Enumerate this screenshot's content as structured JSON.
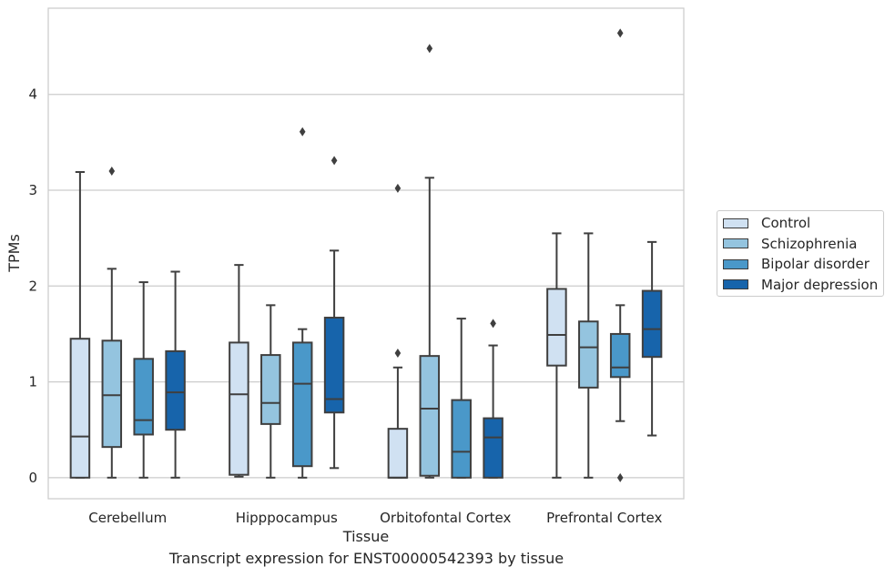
{
  "caption": "Transcript expression for ENST00000542393 by tissue",
  "chart_data": {
    "type": "boxplot",
    "xlabel": "Tissue",
    "ylabel": "TPMs",
    "ylim": [
      -0.22,
      4.9
    ],
    "yticks": [
      0,
      1,
      2,
      3,
      4
    ],
    "grid": "horizontal",
    "legend_position": "right",
    "categories": [
      "Cerebellum",
      "Hipppocampus",
      "Orbitofontal Cortex",
      "Prefrontal Cortex"
    ],
    "series": [
      {
        "name": "Control",
        "color": "#d0e1f2",
        "boxes": [
          {
            "whislo": 0.0,
            "q1": 0.0,
            "med": 0.43,
            "q3": 1.45,
            "whishi": 3.19,
            "fliers": []
          },
          {
            "whislo": 0.01,
            "q1": 0.03,
            "med": 0.87,
            "q3": 1.41,
            "whishi": 2.22,
            "fliers": []
          },
          {
            "whislo": 0.0,
            "q1": 0.0,
            "med": 0.0,
            "q3": 0.51,
            "whishi": 1.15,
            "fliers": [
              1.3,
              3.02
            ]
          },
          {
            "whislo": 0.0,
            "q1": 1.17,
            "med": 1.49,
            "q3": 1.97,
            "whishi": 2.55,
            "fliers": []
          }
        ]
      },
      {
        "name": "Schizophrenia",
        "color": "#94c4df",
        "boxes": [
          {
            "whislo": 0.0,
            "q1": 0.32,
            "med": 0.86,
            "q3": 1.43,
            "whishi": 2.18,
            "fliers": [
              3.2
            ]
          },
          {
            "whislo": 0.0,
            "q1": 0.56,
            "med": 0.78,
            "q3": 1.28,
            "whishi": 1.8,
            "fliers": []
          },
          {
            "whislo": 0.0,
            "q1": 0.02,
            "med": 0.72,
            "q3": 1.27,
            "whishi": 3.13,
            "fliers": [
              4.48
            ]
          },
          {
            "whislo": 0.0,
            "q1": 0.94,
            "med": 1.36,
            "q3": 1.63,
            "whishi": 2.55,
            "fliers": []
          }
        ]
      },
      {
        "name": "Bipolar disorder",
        "color": "#4a98c9",
        "boxes": [
          {
            "whislo": 0.0,
            "q1": 0.45,
            "med": 0.6,
            "q3": 1.24,
            "whishi": 2.04,
            "fliers": []
          },
          {
            "whislo": 0.0,
            "q1": 0.12,
            "med": 0.98,
            "q3": 1.41,
            "whishi": 1.55,
            "fliers": [
              3.61
            ]
          },
          {
            "whislo": 0.0,
            "q1": 0.0,
            "med": 0.27,
            "q3": 0.81,
            "whishi": 1.66,
            "fliers": []
          },
          {
            "whislo": 0.59,
            "q1": 1.05,
            "med": 1.15,
            "q3": 1.5,
            "whishi": 1.8,
            "fliers": [
              0.0,
              4.64
            ]
          }
        ]
      },
      {
        "name": "Major depression",
        "color": "#1764ab",
        "boxes": [
          {
            "whislo": 0.0,
            "q1": 0.5,
            "med": 0.89,
            "q3": 1.32,
            "whishi": 2.15,
            "fliers": []
          },
          {
            "whislo": 0.1,
            "q1": 0.68,
            "med": 0.82,
            "q3": 1.67,
            "whishi": 2.37,
            "fliers": [
              3.31
            ]
          },
          {
            "whislo": 0.0,
            "q1": 0.0,
            "med": 0.42,
            "q3": 0.62,
            "whishi": 1.38,
            "fliers": [
              1.61
            ]
          },
          {
            "whislo": 0.44,
            "q1": 1.26,
            "med": 1.55,
            "q3": 1.95,
            "whishi": 2.46,
            "fliers": []
          }
        ]
      }
    ]
  }
}
